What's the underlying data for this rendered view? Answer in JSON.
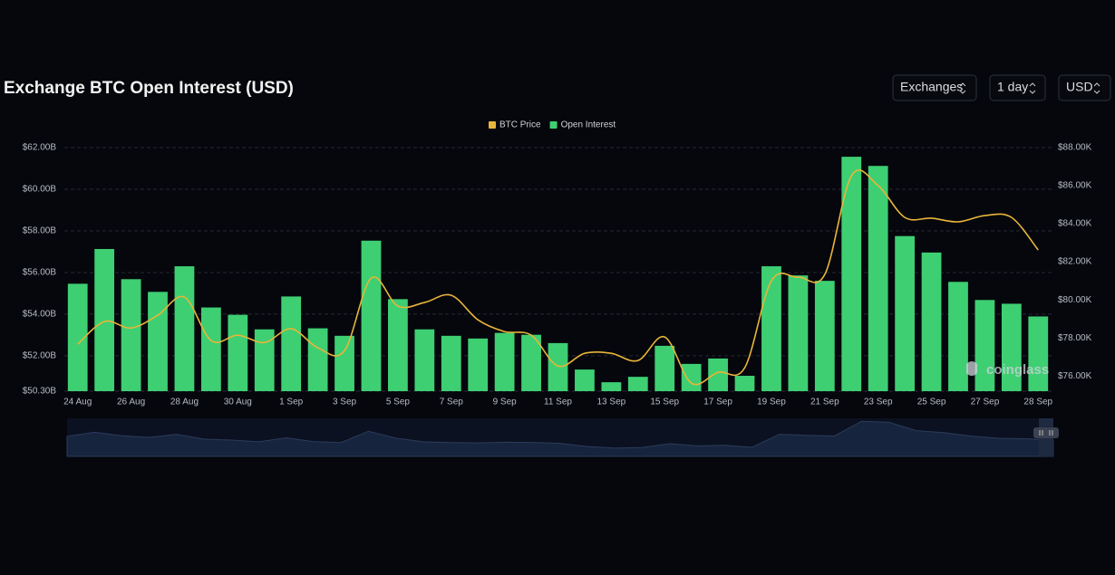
{
  "chart_data": {
    "type": "bar",
    "title": "Exchange BTC Open Interest (USD)",
    "categories": [
      "24 Aug",
      null,
      "26 Aug",
      null,
      "28 Aug",
      null,
      "30 Aug",
      null,
      "1 Sep",
      null,
      "3 Sep",
      null,
      "5 Sep",
      null,
      "7 Sep",
      null,
      "9 Sep",
      null,
      "11 Sep",
      null,
      "13 Sep",
      null,
      "15 Sep",
      null,
      "17 Sep",
      null,
      "19 Sep",
      null,
      "21 Sep",
      null,
      "23 Sep",
      null,
      "25 Sep",
      null,
      "27 Sep",
      null,
      "28 Sep"
    ],
    "series": [
      {
        "name": "BTC Price",
        "type": "line",
        "axis": "y2",
        "color": "#e8b53a",
        "values": [
          77.67,
          78.86,
          78.52,
          79.19,
          80.14,
          77.86,
          78.14,
          77.76,
          78.48,
          77.48,
          77.33,
          81.14,
          79.67,
          79.86,
          80.24,
          78.95,
          78.33,
          78.14,
          76.52,
          77.19,
          77.19,
          76.81,
          78.05,
          75.62,
          76.19,
          76.43,
          81.0,
          81.19,
          81.33,
          86.52,
          86.0,
          84.33,
          84.29,
          84.1,
          84.43,
          84.33,
          82.62
        ]
      },
      {
        "name": "Open Interest",
        "type": "bar",
        "color": "#3ecf73",
        "values": [
          55.46,
          57.13,
          55.68,
          55.07,
          56.3,
          54.32,
          53.97,
          53.27,
          54.85,
          53.32,
          52.96,
          57.53,
          54.72,
          53.27,
          52.96,
          52.83,
          53.1,
          53.01,
          52.61,
          51.34,
          50.73,
          50.99,
          52.48,
          51.61,
          51.87,
          51.04,
          56.3,
          55.86,
          55.6,
          61.56,
          61.12,
          57.75,
          56.96,
          55.55,
          54.68,
          54.5,
          53.89
        ]
      }
    ],
    "ylim": [
      50.3,
      62
    ],
    "yticks": [
      {
        "value": 50.3,
        "label": "$50.30B"
      },
      {
        "value": 52,
        "label": "$52.00B"
      },
      {
        "value": 54,
        "label": "$54.00B"
      },
      {
        "value": 56,
        "label": "$56.00B"
      },
      {
        "value": 58,
        "label": "$58.00B"
      },
      {
        "value": 60,
        "label": "$60.00B"
      },
      {
        "value": 62,
        "label": "$62.00B"
      }
    ],
    "y2lim": [
      75.2,
      88
    ],
    "y2ticks": [
      {
        "value": 76,
        "label": "$76.00K"
      },
      {
        "value": 78,
        "label": "$78.00K"
      },
      {
        "value": 80,
        "label": "$80.00K"
      },
      {
        "value": 82,
        "label": "$82.00K"
      },
      {
        "value": 84,
        "label": "$84.00K"
      },
      {
        "value": 86,
        "label": "$86.00K"
      },
      {
        "value": 88,
        "label": "$88.00K"
      }
    ],
    "grid": true,
    "legend": "top"
  },
  "controls": [
    "Exchanges",
    "1 day",
    "USD"
  ],
  "watermark": "coinglass"
}
